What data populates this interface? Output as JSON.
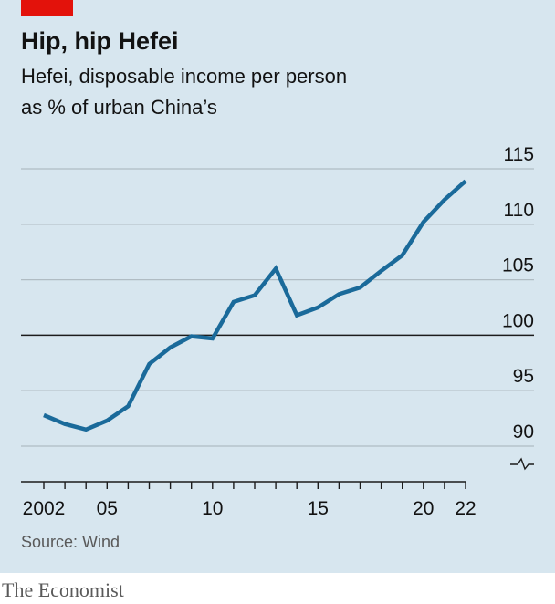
{
  "header": {
    "title": "Hip, hip Hefei",
    "subtitle_line1": "Hefei, disposable income per person",
    "subtitle_line2": "as % of urban China’s"
  },
  "footer": {
    "source": "Source: Wind",
    "brand": "The Economist"
  },
  "colors": {
    "line": "#1a6a9a",
    "accent": "#e3120b",
    "background": "#d7e6ef"
  },
  "chart_data": {
    "type": "line",
    "title": "Hip, hip Hefei",
    "subtitle": "Hefei, disposable income per person as % of urban China’s",
    "xlabel": "",
    "ylabel": "",
    "x": [
      2002,
      2003,
      2004,
      2005,
      2006,
      2007,
      2008,
      2009,
      2010,
      2011,
      2012,
      2013,
      2014,
      2015,
      2016,
      2017,
      2018,
      2019,
      2020,
      2021,
      2022
    ],
    "series": [
      {
        "name": "Hefei",
        "values": [
          92.8,
          92.0,
          91.5,
          92.3,
          93.6,
          97.4,
          98.9,
          99.9,
          99.7,
          103.0,
          103.6,
          106.0,
          101.8,
          102.5,
          103.7,
          104.3,
          105.8,
          107.2,
          110.2,
          112.2,
          113.9
        ]
      }
    ],
    "ylim": [
      90,
      115
    ],
    "xlim": [
      2002,
      2022
    ],
    "yticks": [
      {
        "value": 90,
        "label": "90"
      },
      {
        "value": 95,
        "label": "95"
      },
      {
        "value": 100,
        "label": "100"
      },
      {
        "value": 105,
        "label": "105"
      },
      {
        "value": 110,
        "label": "110"
      },
      {
        "value": 115,
        "label": "115"
      }
    ],
    "xticks": [
      {
        "value": 2002,
        "label": "2002"
      },
      {
        "value": 2005,
        "label": "05"
      },
      {
        "value": 2010,
        "label": "10"
      },
      {
        "value": 2015,
        "label": "15"
      },
      {
        "value": 2020,
        "label": "20"
      },
      {
        "value": 2022,
        "label": "22"
      }
    ],
    "baseline": 100,
    "grid": true,
    "axis_break": true
  }
}
